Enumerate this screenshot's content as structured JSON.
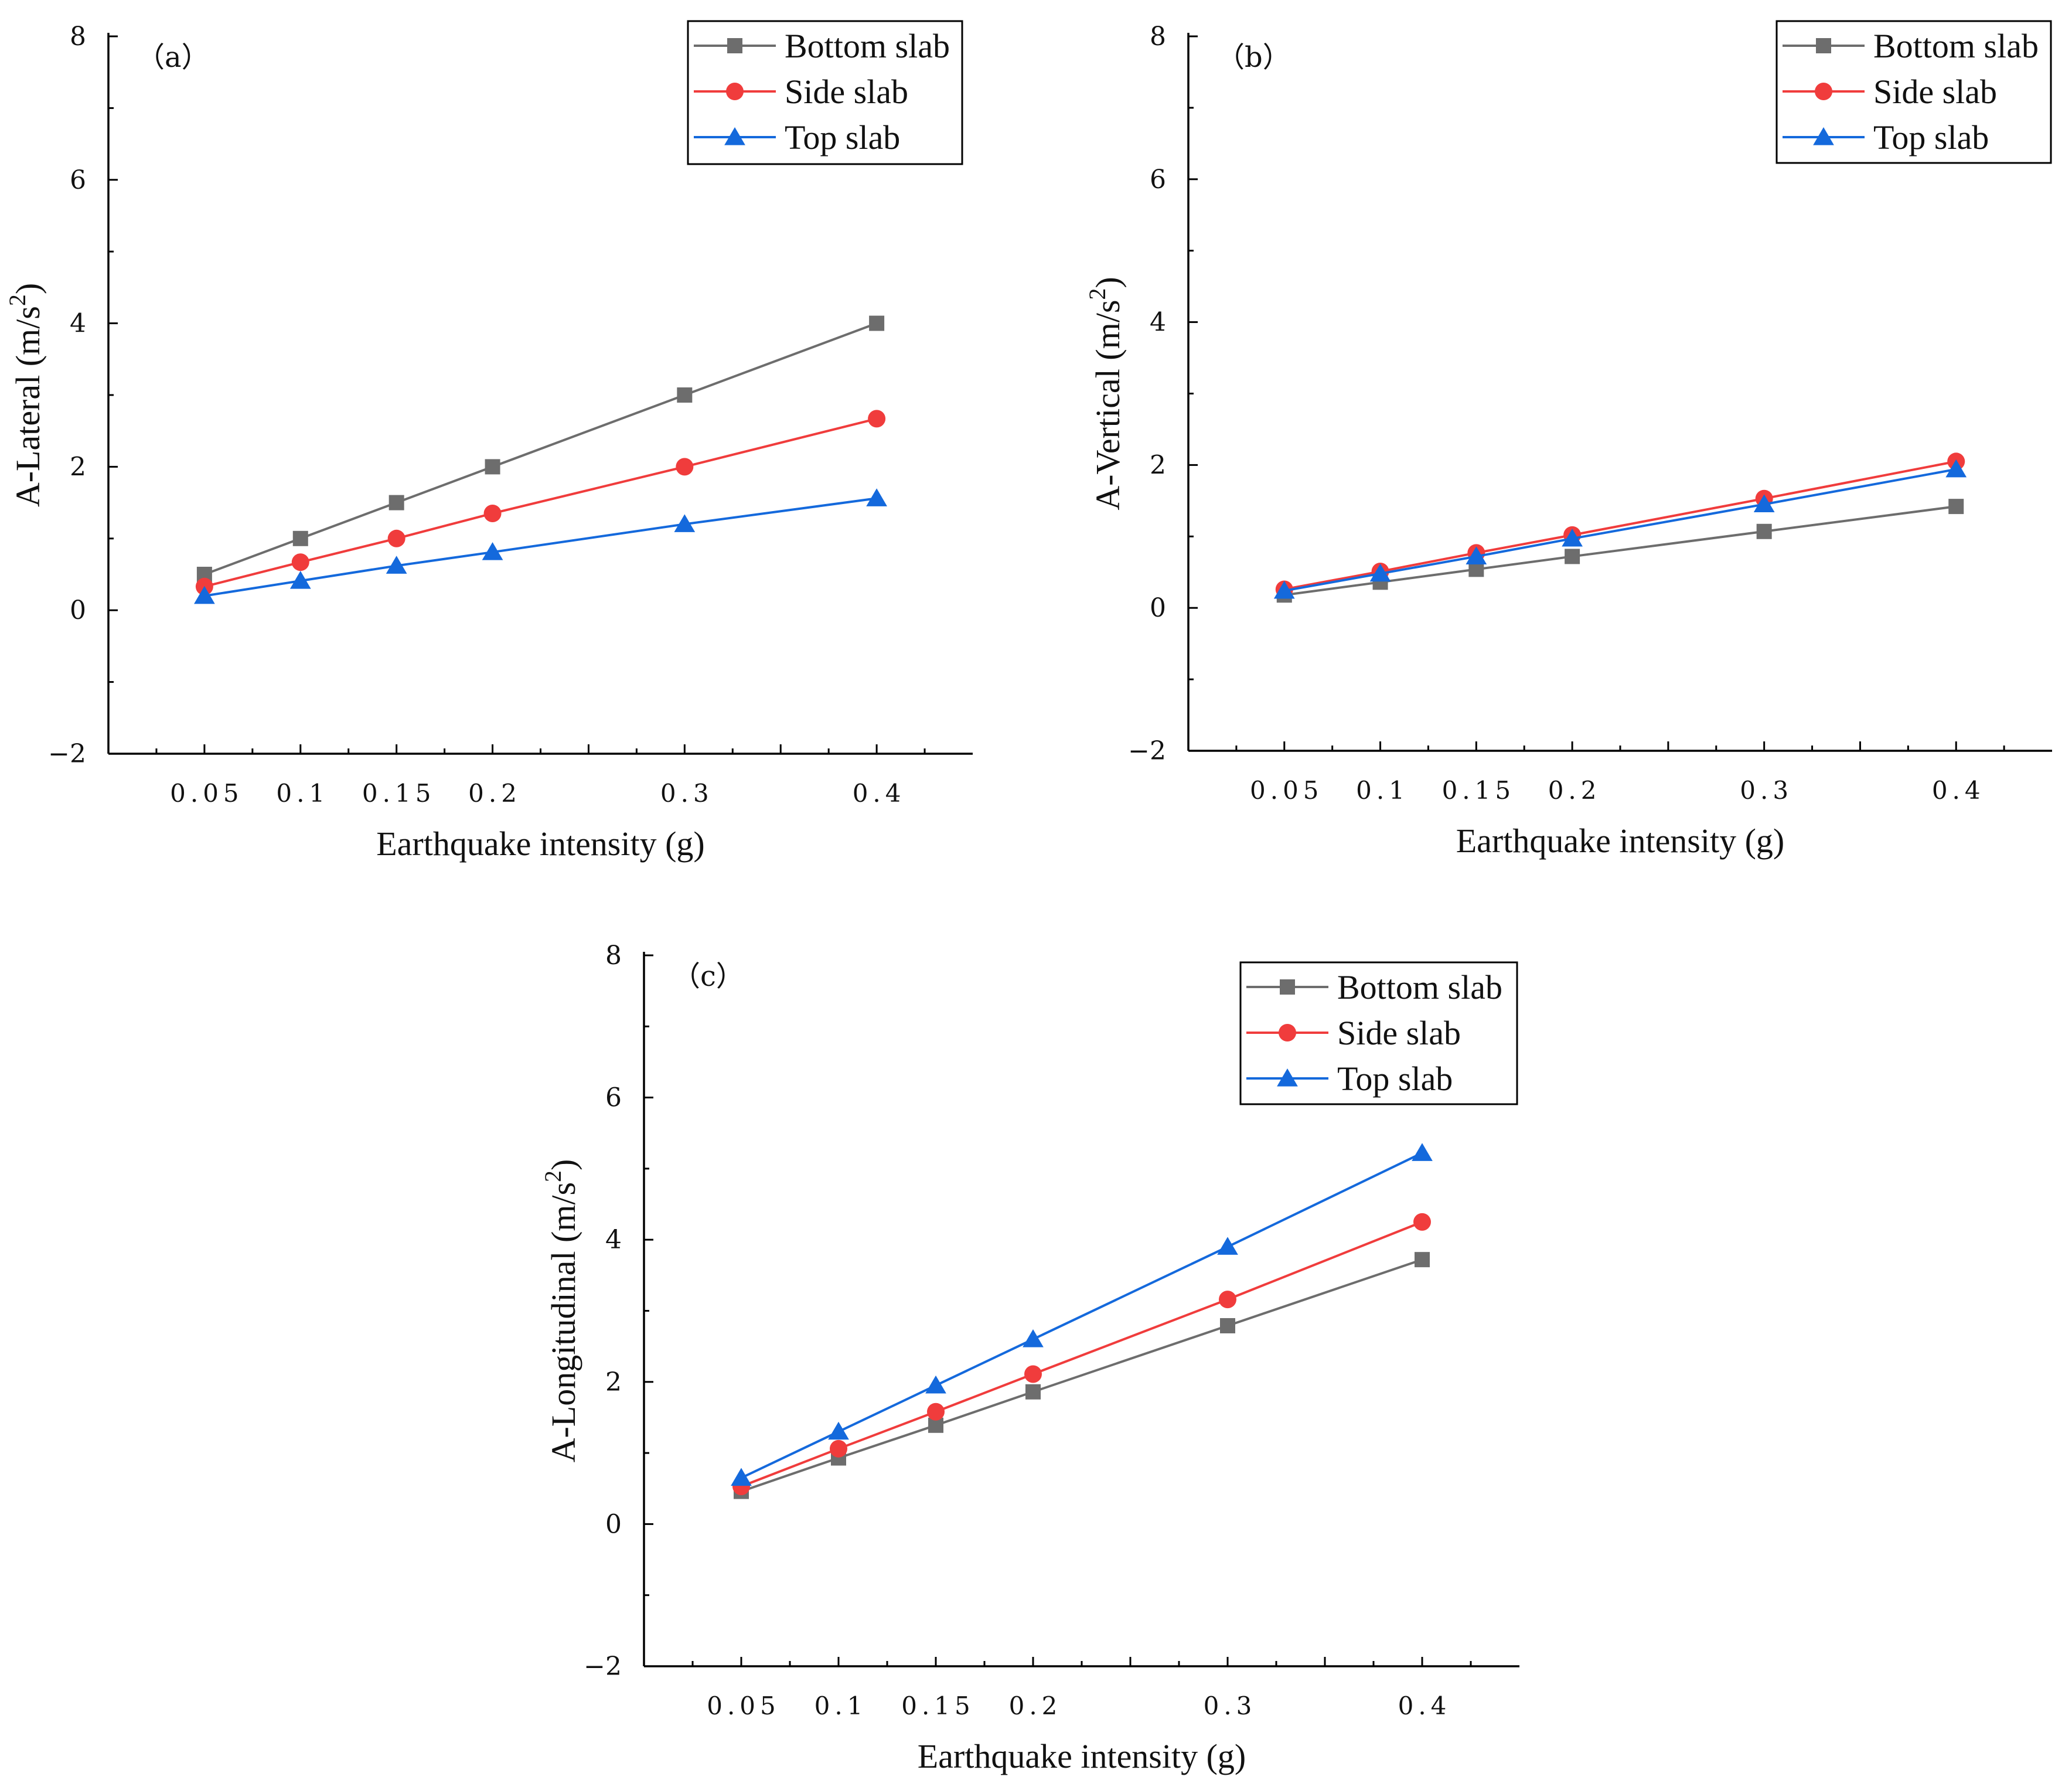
{
  "chart_data": [
    {
      "type": "line",
      "panel_label": "（a）",
      "xlabel": "Earthquake intensity (g)",
      "ylabel": "A-Lateral (m/s",
      "ylabel_sup": "2",
      "ylabel_close": ")",
      "x": [
        0.05,
        0.1,
        0.15,
        0.2,
        0.3,
        0.4
      ],
      "x_tick_labels": [
        "0.05",
        "0.1",
        "0.15",
        "0.2",
        "0.3",
        "0.4"
      ],
      "xlim": [
        0,
        0.45
      ],
      "ylim": [
        -2,
        8
      ],
      "y_ticks": [
        -2,
        0,
        2,
        4,
        6,
        8
      ],
      "y_tick_labels": [
        "−2",
        "0",
        "2",
        "4",
        "6",
        "8"
      ],
      "legend_position": "top-right",
      "series": [
        {
          "name": "Bottom slab",
          "color": "#6d6d6d",
          "marker": "square",
          "values": [
            0.5,
            1.0,
            1.5,
            2.0,
            3.0,
            4.0
          ]
        },
        {
          "name": "Side slab",
          "color": "#f03c3c",
          "marker": "circle",
          "values": [
            0.33,
            0.67,
            1.0,
            1.35,
            2.0,
            2.67
          ]
        },
        {
          "name": "Top slab",
          "color": "#1469dc",
          "marker": "triangle",
          "values": [
            0.2,
            0.41,
            0.62,
            0.81,
            1.2,
            1.56
          ]
        }
      ]
    },
    {
      "type": "line",
      "panel_label": "（b）",
      "xlabel": "Earthquake intensity (g)",
      "ylabel": "A-Vertical (m/s",
      "ylabel_sup": "2",
      "ylabel_close": ")",
      "x": [
        0.05,
        0.1,
        0.15,
        0.2,
        0.3,
        0.4
      ],
      "x_tick_labels": [
        "0.05",
        "0.1",
        "0.15",
        "0.2",
        "0.3",
        "0.4"
      ],
      "xlim": [
        0,
        0.45
      ],
      "ylim": [
        -2,
        8
      ],
      "y_ticks": [
        -2,
        0,
        2,
        4,
        6,
        8
      ],
      "y_tick_labels": [
        "−2",
        "0",
        "2",
        "4",
        "6",
        "8"
      ],
      "legend_position": "top-right",
      "series": [
        {
          "name": "Bottom slab",
          "color": "#6d6d6d",
          "marker": "square",
          "values": [
            0.18,
            0.36,
            0.54,
            0.72,
            1.07,
            1.42
          ]
        },
        {
          "name": "Side slab",
          "color": "#f03c3c",
          "marker": "circle",
          "values": [
            0.26,
            0.51,
            0.77,
            1.02,
            1.53,
            2.05
          ]
        },
        {
          "name": "Top slab",
          "color": "#1469dc",
          "marker": "triangle",
          "values": [
            0.24,
            0.48,
            0.72,
            0.97,
            1.45,
            1.94
          ]
        }
      ]
    },
    {
      "type": "line",
      "panel_label": "（c）",
      "xlabel": "Earthquake intensity (g)",
      "ylabel": "A-Longitudinal (m/s",
      "ylabel_sup": "2",
      "ylabel_close": ")",
      "x": [
        0.05,
        0.1,
        0.15,
        0.2,
        0.3,
        0.4
      ],
      "x_tick_labels": [
        "0.05",
        "0.1",
        "0.15",
        "0.2",
        "0.3",
        "0.4"
      ],
      "xlim": [
        0,
        0.45
      ],
      "ylim": [
        -2,
        8
      ],
      "y_ticks": [
        -2,
        0,
        2,
        4,
        6,
        8
      ],
      "y_tick_labels": [
        "−2",
        "0",
        "2",
        "4",
        "6",
        "8"
      ],
      "legend_position": "top-right",
      "series": [
        {
          "name": "Bottom slab",
          "color": "#6d6d6d",
          "marker": "square",
          "values": [
            0.46,
            0.93,
            1.39,
            1.86,
            2.79,
            3.72
          ]
        },
        {
          "name": "Side slab",
          "color": "#f03c3c",
          "marker": "circle",
          "values": [
            0.53,
            1.06,
            1.58,
            2.11,
            3.16,
            4.25
          ]
        },
        {
          "name": "Top slab",
          "color": "#1469dc",
          "marker": "triangle",
          "values": [
            0.65,
            1.3,
            1.95,
            2.6,
            3.9,
            5.22
          ]
        }
      ]
    }
  ]
}
